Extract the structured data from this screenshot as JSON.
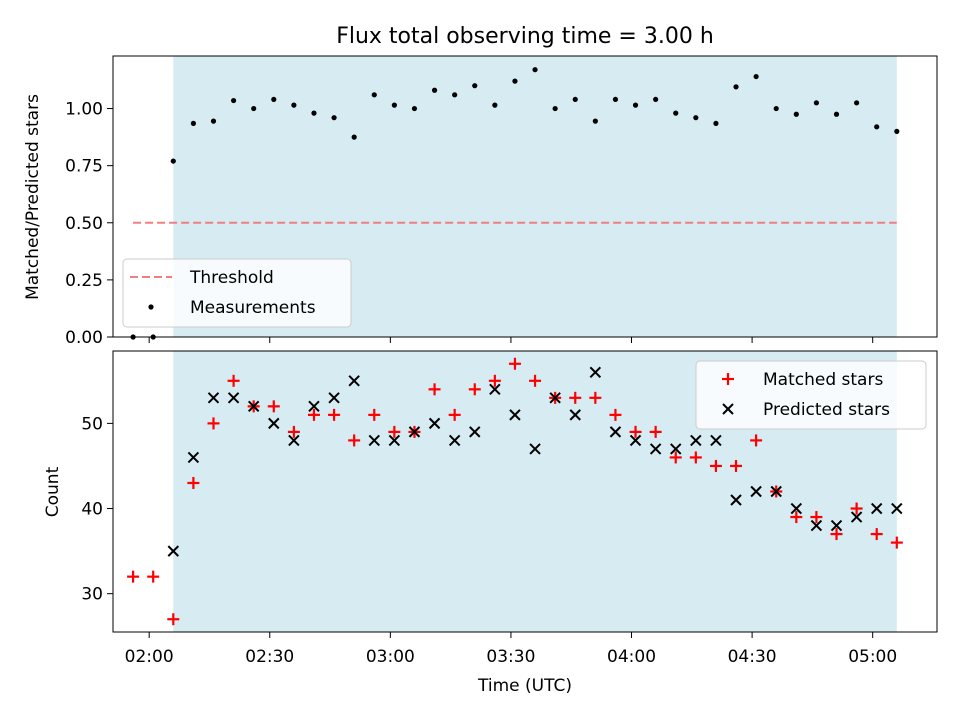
{
  "title": "Flux total observing time = 3.00 h",
  "chart_data": [
    {
      "type": "scatter",
      "panel": "top",
      "title": "Flux total observing time = 3.00 h",
      "xlabel": "",
      "ylabel": "Matched/Predicted stars",
      "xlim": [
        "01:51",
        "05:16"
      ],
      "ylim": [
        0,
        1.23
      ],
      "yticks": [
        "0.00",
        "0.25",
        "0.50",
        "0.75",
        "1.00"
      ],
      "shaded_span": [
        "02:06",
        "05:06"
      ],
      "legend_position": "lower-left",
      "threshold": {
        "name": "Threshold",
        "value": 0.5,
        "x_range": [
          "01:56",
          "05:06"
        ],
        "color": "#f08080"
      },
      "series": [
        {
          "name": "Measurements",
          "color": "#000000",
          "x": [
            "01:56",
            "02:01",
            "02:06",
            "02:11",
            "02:16",
            "02:21",
            "02:26",
            "02:31",
            "02:36",
            "02:41",
            "02:46",
            "02:51",
            "02:56",
            "03:01",
            "03:06",
            "03:11",
            "03:16",
            "03:21",
            "03:26",
            "03:31",
            "03:36",
            "03:41",
            "03:46",
            "03:51",
            "03:56",
            "04:01",
            "04:06",
            "04:11",
            "04:16",
            "04:21",
            "04:26",
            "04:31",
            "04:36",
            "04:41",
            "04:46",
            "04:51",
            "04:56",
            "05:01",
            "05:06"
          ],
          "y": [
            0,
            0,
            0.77,
            0.935,
            0.945,
            1.035,
            1.0,
            1.04,
            1.015,
            0.98,
            0.96,
            0.875,
            1.06,
            1.015,
            1.0,
            1.08,
            1.06,
            1.1,
            1.015,
            1.12,
            1.17,
            1.0,
            1.04,
            0.945,
            1.04,
            1.015,
            1.04,
            0.98,
            0.96,
            0.935,
            1.095,
            1.14,
            1.0,
            0.975,
            1.025,
            0.975,
            1.025,
            0.92,
            0.9
          ]
        }
      ]
    },
    {
      "type": "scatter",
      "panel": "bottom",
      "xlabel": "Time (UTC)",
      "ylabel": "Count",
      "xlim": [
        "01:51",
        "05:16"
      ],
      "ylim": [
        25.5,
        58.5
      ],
      "yticks": [
        "30",
        "40",
        "50"
      ],
      "xticks": [
        "02:00",
        "02:30",
        "03:00",
        "03:30",
        "04:00",
        "04:30",
        "05:00"
      ],
      "shaded_span": [
        "02:06",
        "05:06"
      ],
      "legend_position": "top-right",
      "series": [
        {
          "name": "Matched stars",
          "color": "#ff0000",
          "marker": "plus",
          "x": [
            "01:56",
            "02:01",
            "02:06",
            "02:11",
            "02:16",
            "02:21",
            "02:26",
            "02:31",
            "02:36",
            "02:41",
            "02:46",
            "02:51",
            "02:56",
            "03:01",
            "03:06",
            "03:11",
            "03:16",
            "03:21",
            "03:26",
            "03:31",
            "03:36",
            "03:41",
            "03:46",
            "03:51",
            "03:56",
            "04:01",
            "04:06",
            "04:11",
            "04:16",
            "04:21",
            "04:26",
            "04:31",
            "04:36",
            "04:41",
            "04:46",
            "04:51",
            "04:56",
            "05:01",
            "05:06"
          ],
          "y": [
            32,
            32,
            27,
            43,
            50,
            55,
            52,
            52,
            49,
            51,
            51,
            48,
            51,
            49,
            49,
            54,
            51,
            54,
            55,
            57,
            55,
            53,
            53,
            53,
            51,
            49,
            49,
            46,
            46,
            45,
            45,
            48,
            42,
            39,
            39,
            37,
            40,
            37,
            36
          ]
        },
        {
          "name": "Predicted stars",
          "color": "#000000",
          "marker": "x",
          "x": [
            "02:06",
            "02:11",
            "02:16",
            "02:21",
            "02:26",
            "02:31",
            "02:36",
            "02:41",
            "02:46",
            "02:51",
            "02:56",
            "03:01",
            "03:06",
            "03:11",
            "03:16",
            "03:21",
            "03:26",
            "03:31",
            "03:36",
            "03:41",
            "03:46",
            "03:51",
            "03:56",
            "04:01",
            "04:06",
            "04:11",
            "04:16",
            "04:21",
            "04:26",
            "04:31",
            "04:36",
            "04:41",
            "04:46",
            "04:51",
            "04:56",
            "05:01",
            "05:06"
          ],
          "y": [
            35,
            46,
            53,
            53,
            52,
            50,
            48,
            52,
            53,
            55,
            48,
            48,
            49,
            50,
            48,
            49,
            54,
            51,
            47,
            53,
            51,
            56,
            49,
            48,
            47,
            47,
            48,
            48,
            41,
            42,
            42,
            40,
            38,
            38,
            39,
            40,
            40
          ]
        }
      ]
    }
  ]
}
